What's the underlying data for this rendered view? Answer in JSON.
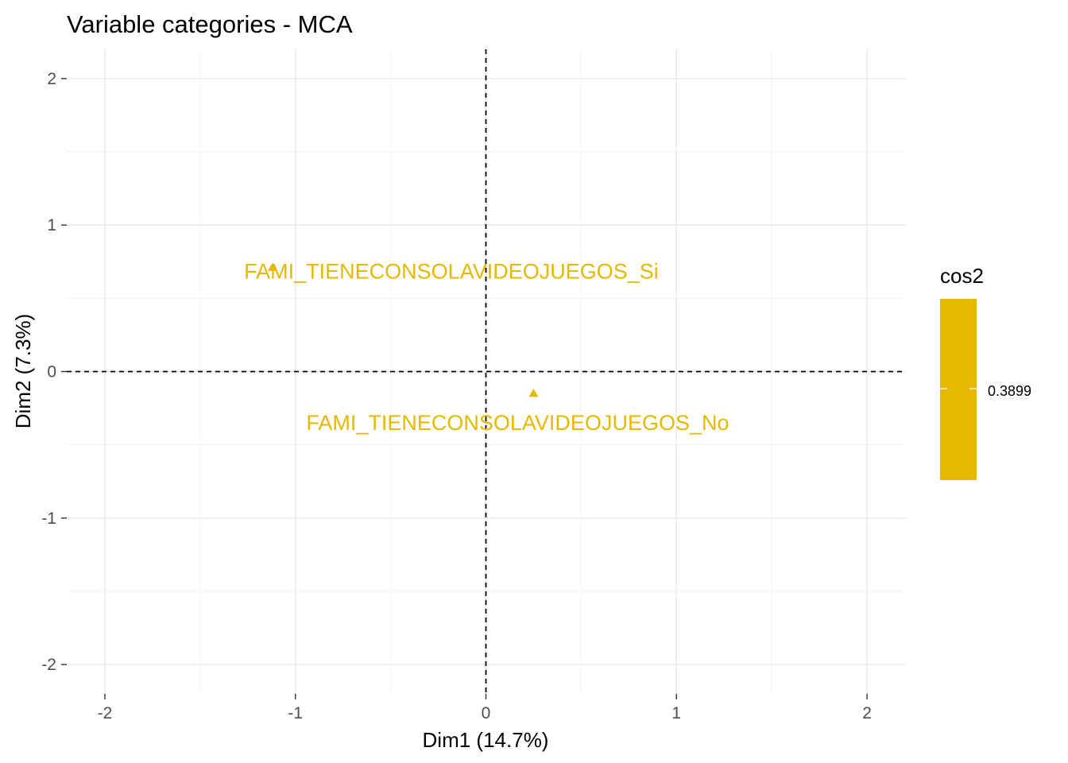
{
  "chart_data": {
    "type": "scatter",
    "title": "Variable categories - MCA",
    "xlabel": "Dim1 (14.7%)",
    "ylabel": "Dim2 (7.3%)",
    "xlim": [
      -2.2,
      2.2
    ],
    "ylim": [
      -2.2,
      2.2
    ],
    "x_ticks": [
      -2,
      -1,
      0,
      1,
      2
    ],
    "y_ticks": [
      -2,
      -1,
      0,
      1,
      2
    ],
    "x_tick_labels": [
      "-2",
      "-1",
      "0",
      "1",
      "2"
    ],
    "y_tick_labels": [
      "-2",
      "-1",
      "0",
      "1",
      "2"
    ],
    "grid": true,
    "reference_lines": {
      "x": 0,
      "y": 0,
      "style": "dashed"
    },
    "marker": "triangle",
    "point_color": "#E7B800",
    "points": [
      {
        "label": "FAMI_TIENECONSOLAVIDEOJUEGOS_Si",
        "x": -1.12,
        "y": 0.71,
        "cos2": 0.3899
      },
      {
        "label": "FAMI_TIENECONSOLAVIDEOJUEGOS_No",
        "x": 0.25,
        "y": -0.15,
        "cos2": 0.3899
      }
    ],
    "legend": {
      "title": "cos2",
      "placement": "right",
      "labels": [
        "0.3899"
      ],
      "color": "#E7B800"
    }
  }
}
